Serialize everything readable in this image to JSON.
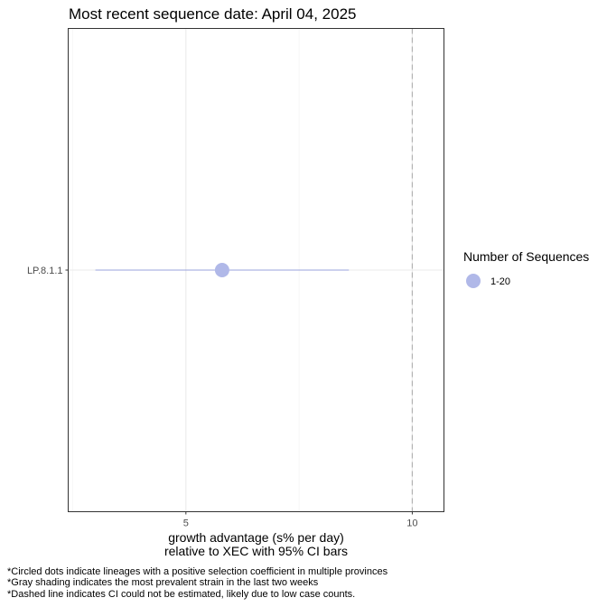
{
  "chart_data": {
    "type": "scatter",
    "title": "Most recent sequence date: April 04, 2025",
    "xlabel_line1": "growth advantage (s% per day)",
    "xlabel_line2": "relative to  XEC  with 95% CI bars",
    "xlim": [
      2.4,
      10.7
    ],
    "xticks": [
      5,
      10
    ],
    "categories": [
      "LP.8.1.1"
    ],
    "points": [
      {
        "lineage": "LP.8.1.1",
        "estimate": 5.8,
        "ci_low": 3.0,
        "ci_high": 8.6,
        "size_group": "1-20"
      }
    ],
    "reference_line": {
      "x": 10,
      "style": "dashed"
    },
    "legend": {
      "title": "Number of Sequences",
      "placement": "right",
      "entries": [
        {
          "label": "1-20",
          "color": "#b0b8e8"
        }
      ]
    },
    "grid": true,
    "point_color": "#b0b8e8",
    "ci_color": "#9aa3dd"
  },
  "footnotes": [
    "*Circled dots indicate lineages with a positive selection coefficient in multiple provinces",
    "*Gray shading indicates the most prevalent strain in the last two weeks",
    "*Dashed line indicates CI could not be estimated, likely due to low case counts."
  ]
}
